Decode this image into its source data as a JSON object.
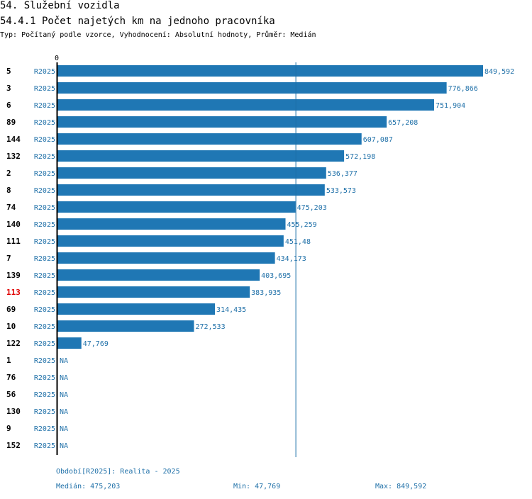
{
  "header": {
    "title": "54. Služební vozidla",
    "subtitle": "54.4.1 Počet najetých km na jednoho pracovníka",
    "meta": "Typ: Počítaný podle vzorce, Vyhodnocení: Absolutní hodnoty, Průměr: Medián"
  },
  "colors": {
    "bar": "#1f77b4",
    "label": "#1f70a8",
    "highlight": "#e00000"
  },
  "chart_data": {
    "type": "bar",
    "orientation": "horizontal",
    "axis_zero_label": "0",
    "xlim": [
      0,
      849.592
    ],
    "series_name": "R2025",
    "median": 475.203,
    "highlight_id": "113",
    "rows": [
      {
        "id": "5",
        "series": "R2025",
        "value": 849.592,
        "label": "849,592"
      },
      {
        "id": "3",
        "series": "R2025",
        "value": 776.866,
        "label": "776,866"
      },
      {
        "id": "6",
        "series": "R2025",
        "value": 751.904,
        "label": "751,904"
      },
      {
        "id": "89",
        "series": "R2025",
        "value": 657.208,
        "label": "657,208"
      },
      {
        "id": "144",
        "series": "R2025",
        "value": 607.087,
        "label": "607,087"
      },
      {
        "id": "132",
        "series": "R2025",
        "value": 572.198,
        "label": "572,198"
      },
      {
        "id": "2",
        "series": "R2025",
        "value": 536.377,
        "label": "536,377"
      },
      {
        "id": "8",
        "series": "R2025",
        "value": 533.573,
        "label": "533,573"
      },
      {
        "id": "74",
        "series": "R2025",
        "value": 475.203,
        "label": "475,203"
      },
      {
        "id": "140",
        "series": "R2025",
        "value": 455.259,
        "label": "455,259"
      },
      {
        "id": "111",
        "series": "R2025",
        "value": 451.48,
        "label": "451,48"
      },
      {
        "id": "7",
        "series": "R2025",
        "value": 434.173,
        "label": "434,173"
      },
      {
        "id": "139",
        "series": "R2025",
        "value": 403.695,
        "label": "403,695"
      },
      {
        "id": "113",
        "series": "R2025",
        "value": 383.935,
        "label": "383,935"
      },
      {
        "id": "69",
        "series": "R2025",
        "value": 314.435,
        "label": "314,435"
      },
      {
        "id": "10",
        "series": "R2025",
        "value": 272.533,
        "label": "272,533"
      },
      {
        "id": "122",
        "series": "R2025",
        "value": 47.769,
        "label": "47,769"
      },
      {
        "id": "1",
        "series": "R2025",
        "value": null,
        "label": "NA"
      },
      {
        "id": "76",
        "series": "R2025",
        "value": null,
        "label": "NA"
      },
      {
        "id": "56",
        "series": "R2025",
        "value": null,
        "label": "NA"
      },
      {
        "id": "130",
        "series": "R2025",
        "value": null,
        "label": "NA"
      },
      {
        "id": "9",
        "series": "R2025",
        "value": null,
        "label": "NA"
      },
      {
        "id": "152",
        "series": "R2025",
        "value": null,
        "label": "NA"
      }
    ]
  },
  "footer": {
    "period": "Období[R2025]: Realita - 2025",
    "median": "Medián: 475,203",
    "min": "Min: 47,769",
    "max": "Max: 849,592"
  }
}
